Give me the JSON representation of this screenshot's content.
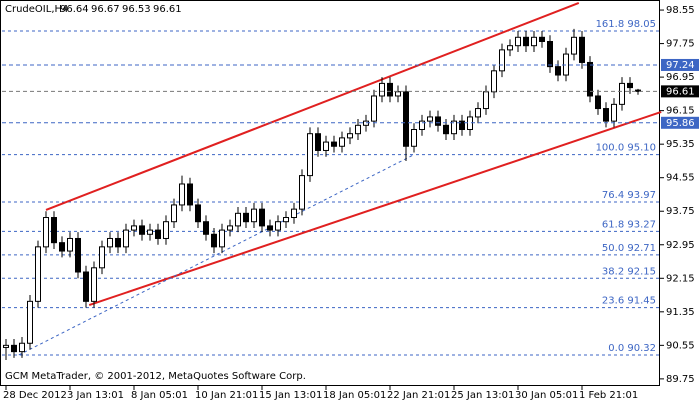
{
  "chart_data": {
    "type": "candlestick",
    "title": "CrudeOIL,H4",
    "footer": "GCM MetaTrader, © 2001-2012, MetaQuotes Software Corp.",
    "categories": [
      "28 Dec 2012",
      null,
      null,
      null,
      null,
      null,
      null,
      null,
      "3 Jan 13:01",
      null,
      null,
      null,
      null,
      null,
      null,
      null,
      "8 Jan 05:01",
      null,
      null,
      null,
      null,
      null,
      null,
      null,
      "10 Jan 21:01",
      null,
      null,
      null,
      null,
      null,
      null,
      null,
      "15 Jan 13:01",
      null,
      null,
      null,
      null,
      null,
      null,
      null,
      "18 Jan 05:01",
      null,
      null,
      null,
      null,
      null,
      null,
      null,
      "22 Jan 21:01",
      null,
      null,
      null,
      null,
      null,
      null,
      null,
      "25 Jan 13:01",
      null,
      null,
      null,
      null,
      null,
      null,
      null,
      "30 Jan 05:01",
      null,
      null,
      null,
      null,
      null,
      null,
      null,
      "1 Feb 21:01",
      null,
      null,
      null,
      null,
      null,
      null,
      null
    ],
    "series": {
      "open": [
        90.5,
        90.55,
        90.4,
        90.6,
        91.6,
        92.9,
        93.6,
        93.0,
        92.8,
        93.1,
        92.3,
        91.6,
        92.4,
        92.9,
        93.1,
        92.9,
        93.3,
        93.4,
        93.2,
        93.3,
        93.1,
        93.5,
        93.9,
        94.4,
        93.9,
        93.5,
        93.2,
        92.9,
        93.3,
        93.4,
        93.7,
        93.5,
        93.8,
        93.4,
        93.3,
        93.5,
        93.6,
        93.8,
        94.6,
        95.6,
        95.2,
        95.4,
        95.3,
        95.5,
        95.6,
        95.8,
        95.9,
        96.5,
        96.8,
        96.5,
        96.6,
        95.3,
        95.7,
        95.9,
        96.0,
        95.8,
        95.6,
        95.9,
        95.7,
        96.0,
        96.2,
        96.6,
        97.1,
        97.6,
        97.7,
        97.9,
        97.7,
        97.9,
        97.8,
        97.2,
        97.0,
        97.5,
        97.9,
        97.3,
        96.5,
        96.2,
        95.9,
        96.3,
        96.8,
        96.64
      ],
      "high": [
        90.7,
        90.7,
        90.75,
        91.75,
        93.05,
        93.75,
        93.75,
        93.15,
        93.25,
        93.25,
        92.45,
        92.55,
        93.05,
        93.25,
        93.25,
        93.45,
        93.55,
        93.55,
        93.45,
        93.45,
        93.65,
        94.05,
        94.6,
        94.55,
        94.05,
        93.65,
        93.35,
        93.45,
        93.55,
        93.85,
        93.85,
        93.95,
        93.95,
        93.55,
        93.65,
        93.75,
        93.95,
        94.75,
        95.75,
        95.75,
        95.55,
        95.55,
        95.65,
        95.75,
        95.95,
        96.05,
        96.65,
        96.95,
        96.95,
        96.75,
        96.75,
        95.85,
        96.05,
        96.15,
        96.15,
        95.95,
        96.05,
        96.05,
        96.15,
        96.35,
        96.75,
        97.25,
        97.75,
        97.85,
        98.05,
        98.05,
        98.05,
        98.05,
        97.95,
        97.35,
        97.65,
        98.1,
        98.05,
        97.45,
        96.65,
        96.35,
        96.45,
        96.95,
        96.95,
        96.67
      ],
      "low": [
        90.2,
        90.25,
        90.25,
        90.45,
        91.45,
        92.75,
        92.85,
        92.65,
        92.65,
        92.15,
        91.45,
        91.45,
        92.25,
        92.75,
        92.75,
        92.75,
        93.15,
        93.05,
        93.05,
        92.95,
        92.95,
        93.35,
        93.75,
        93.75,
        93.35,
        93.05,
        92.75,
        92.75,
        93.15,
        93.25,
        93.35,
        93.35,
        93.25,
        93.15,
        93.15,
        93.35,
        93.45,
        93.65,
        94.45,
        95.05,
        95.05,
        95.15,
        95.15,
        95.35,
        95.45,
        95.65,
        95.75,
        96.35,
        96.35,
        96.35,
        94.95,
        95.15,
        95.55,
        95.75,
        95.65,
        95.45,
        95.45,
        95.55,
        95.55,
        95.85,
        96.05,
        96.45,
        96.95,
        97.45,
        97.55,
        97.55,
        97.55,
        97.65,
        97.05,
        96.85,
        96.85,
        97.35,
        97.15,
        96.35,
        96.05,
        95.75,
        95.75,
        96.15,
        96.55,
        96.53
      ],
      "close": [
        90.55,
        90.4,
        90.6,
        91.6,
        92.9,
        93.6,
        93.0,
        92.8,
        93.1,
        92.3,
        91.6,
        92.4,
        92.9,
        93.1,
        92.9,
        93.3,
        93.4,
        93.2,
        93.3,
        93.1,
        93.5,
        93.9,
        94.4,
        93.9,
        93.5,
        93.2,
        92.9,
        93.3,
        93.4,
        93.7,
        93.5,
        93.8,
        93.4,
        93.3,
        93.5,
        93.6,
        93.8,
        94.6,
        95.6,
        95.2,
        95.4,
        95.3,
        95.5,
        95.6,
        95.8,
        95.9,
        96.5,
        96.8,
        96.5,
        96.6,
        95.3,
        95.7,
        95.9,
        96.0,
        95.8,
        95.6,
        95.9,
        95.7,
        96.0,
        96.2,
        96.6,
        97.1,
        97.6,
        97.7,
        97.9,
        97.7,
        97.9,
        97.8,
        97.2,
        97.0,
        97.5,
        97.9,
        97.3,
        96.5,
        96.2,
        95.9,
        96.3,
        96.8,
        96.7,
        96.61
      ]
    },
    "ylim": [
      89.58,
      98.79
    ],
    "yticks": [
      98.55,
      97.75,
      96.95,
      96.15,
      95.35,
      94.55,
      93.75,
      92.95,
      92.15,
      91.35,
      90.55,
      89.75
    ],
    "fib_levels": [
      {
        "value": 98.05,
        "label": "161.8 98.05"
      },
      {
        "value": 95.1,
        "label": "100.0 95.10"
      },
      {
        "value": 93.97,
        "label": "76.4 93.97"
      },
      {
        "value": 93.27,
        "label": "61.8 93.27"
      },
      {
        "value": 92.71,
        "label": "50.0 92.71"
      },
      {
        "value": 92.15,
        "label": "38.2 92.15"
      },
      {
        "value": 91.45,
        "label": "23.6 91.45"
      },
      {
        "value": 90.32,
        "label": "0.0 90.32"
      }
    ],
    "price_lines": [
      {
        "value": 97.24,
        "color": "#3d66c4"
      },
      {
        "value": 96.61,
        "color": "#000000"
      },
      {
        "value": 95.86,
        "color": "#3d66c4"
      }
    ],
    "trendlines": [
      {
        "color": "#e02020",
        "x": [
          5,
          71.6
        ],
        "y": [
          93.78,
          98.72
        ]
      },
      {
        "color": "#e02020",
        "x": [
          10.4,
          81.9
        ],
        "y": [
          91.51,
          96.12
        ]
      },
      {
        "color": "#3d66c4",
        "x": [
          1.6,
          51
        ],
        "y": [
          90.32,
          95.1
        ]
      }
    ],
    "bull_color": "#ffffff",
    "bear_color": "#000000",
    "grid_color": "#3d66c4"
  }
}
